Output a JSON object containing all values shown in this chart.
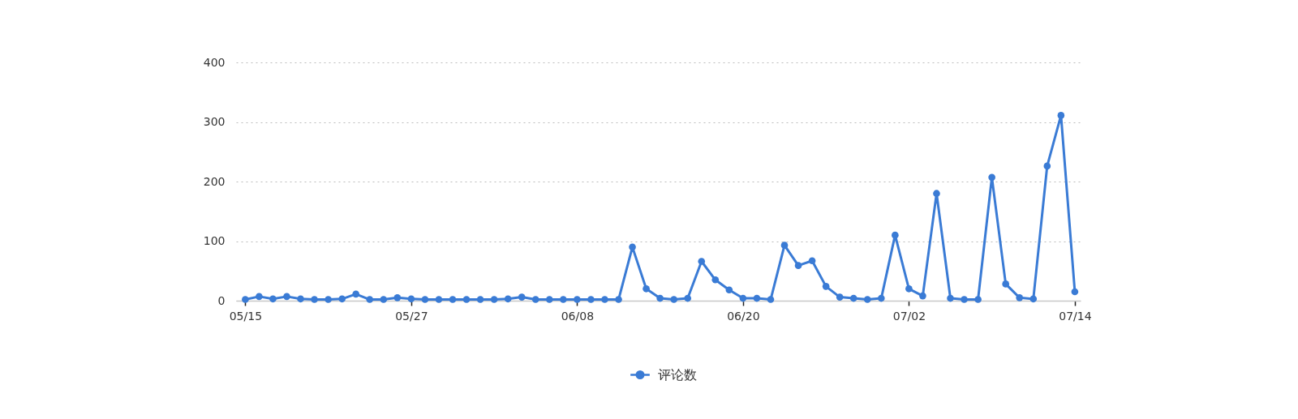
{
  "chart_data": {
    "type": "line",
    "x": [
      "--05-15",
      "--05-16",
      "--05-17",
      "--05-18",
      "--05-19",
      "--05-20",
      "--05-21",
      "--05-22",
      "--05-23",
      "--05-24",
      "--05-25",
      "--05-26",
      "--05-27",
      "--05-28",
      "--05-29",
      "--05-30",
      "--05-31",
      "--06-01",
      "--06-02",
      "--06-03",
      "--06-04",
      "--06-05",
      "--06-06",
      "--06-07",
      "--06-08",
      "--06-09",
      "--06-10",
      "--06-11",
      "--06-12",
      "--06-13",
      "--06-14",
      "--06-15",
      "--06-16",
      "--06-17",
      "--06-18",
      "--06-19",
      "--06-20",
      "--06-21",
      "--06-22",
      "--06-23",
      "--06-24",
      "--06-25",
      "--06-26",
      "--06-27",
      "--06-28",
      "--06-29",
      "--06-30",
      "--07-01",
      "--07-02",
      "--07-03",
      "--07-04",
      "--07-05",
      "--07-06",
      "--07-07",
      "--07-08",
      "--07-09",
      "--07-10",
      "--07-11",
      "--07-12",
      "--07-13",
      "--07-14"
    ],
    "series": [
      {
        "name": "评论数",
        "color": "#3a7bd5",
        "values": [
          2,
          7,
          3,
          7,
          3,
          2,
          2,
          3,
          11,
          2,
          2,
          5,
          3,
          2,
          2,
          2,
          2,
          2,
          2,
          3,
          6,
          2,
          2,
          2,
          2,
          2,
          2,
          2,
          90,
          20,
          4,
          2,
          4,
          66,
          35,
          18,
          4,
          4,
          2,
          93,
          59,
          67,
          24,
          6,
          4,
          2,
          4,
          110,
          20,
          8,
          180,
          4,
          2,
          2,
          207,
          28,
          5,
          3,
          226,
          311,
          15
        ]
      }
    ],
    "xlim": [
      "--05-14T08:00",
      "--07-14T10:00"
    ],
    "xticks": [
      {
        "value": "--05-15",
        "label": "05/15"
      },
      {
        "value": "--05-27",
        "label": "05/27"
      },
      {
        "value": "--06-08",
        "label": "06/08"
      },
      {
        "value": "--06-20",
        "label": "06/20"
      },
      {
        "value": "--07-02",
        "label": "07/02"
      },
      {
        "value": "--07-14",
        "label": "07/14"
      }
    ],
    "ylim": [
      0,
      400
    ],
    "yticks": [
      0,
      100,
      200,
      300,
      400
    ],
    "grid": "y",
    "legend": "bottom",
    "marker": "circle",
    "line_style": "solid"
  }
}
